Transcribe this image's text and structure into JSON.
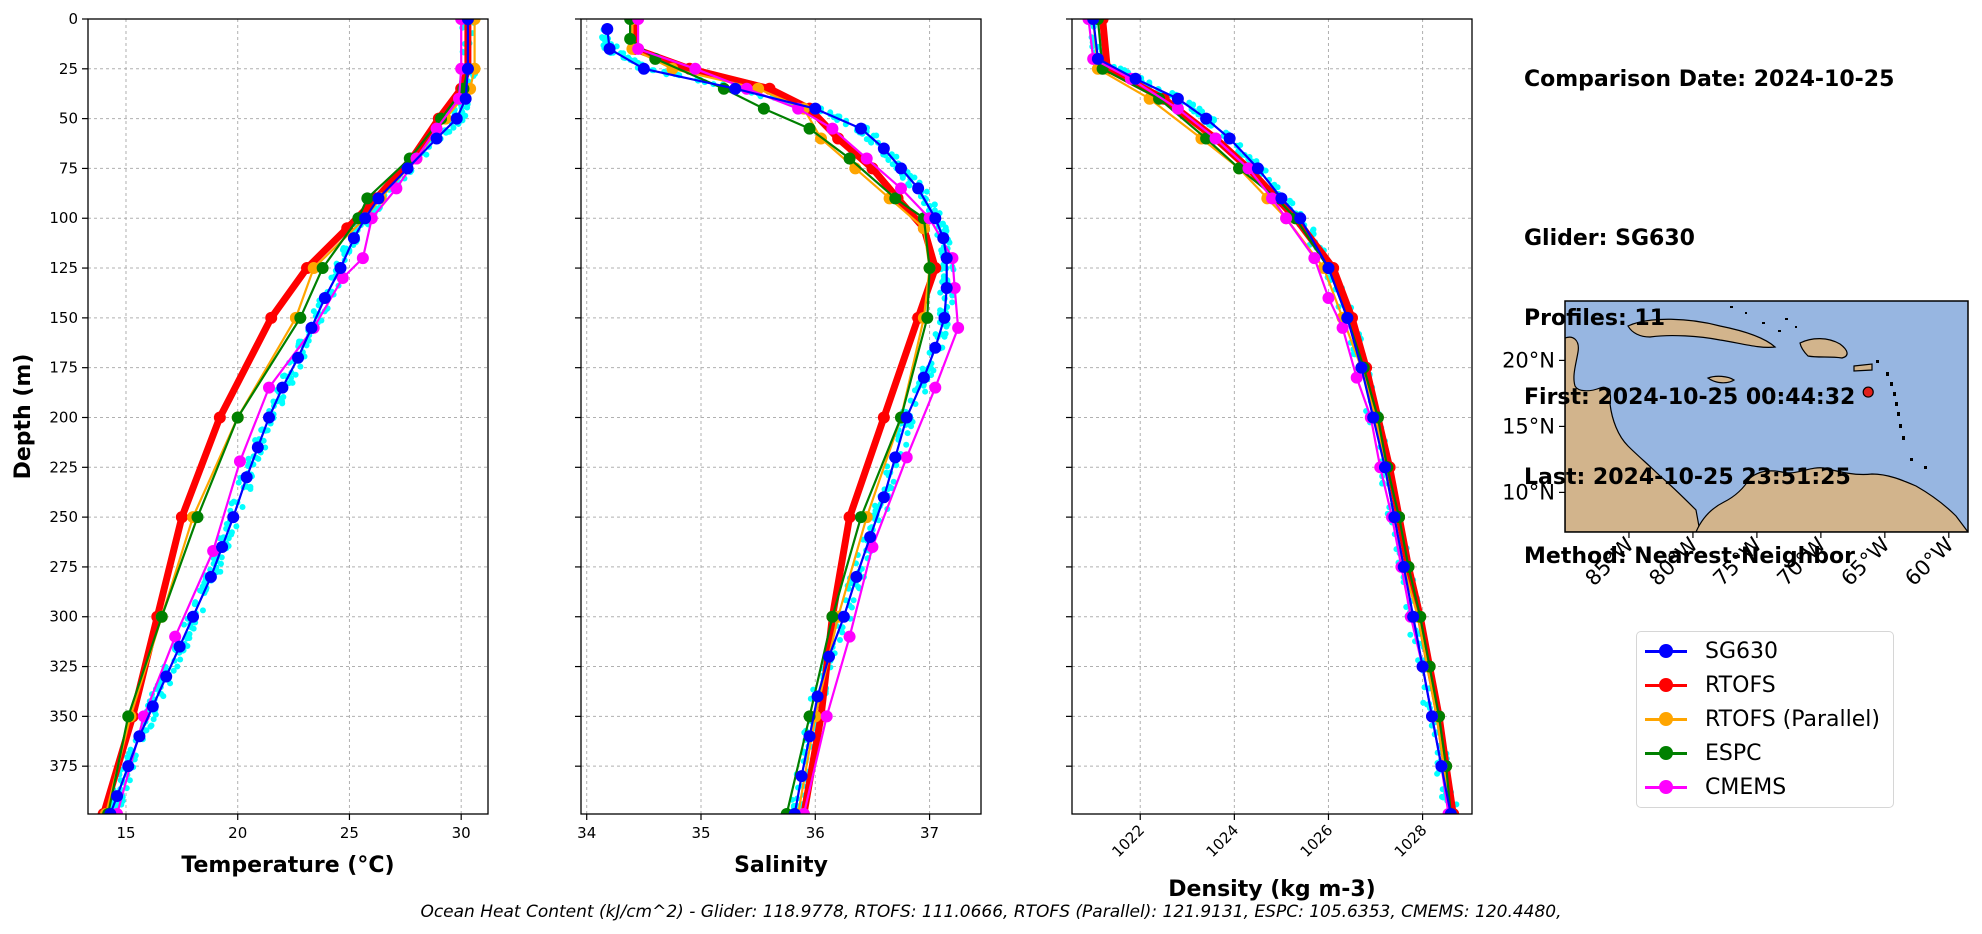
{
  "info": {
    "lines": [
      "Comparison Date: 2024-10-25",
      "",
      "Glider: SG630",
      "Profiles: 11",
      "First: 2024-10-25 00:44:32",
      "Last: 2024-10-25 23:51:25",
      "Method: Nearest-Neighbor"
    ]
  },
  "legend": [
    {
      "name": "SG630",
      "color": "#0000ff"
    },
    {
      "name": "RTOFS",
      "color": "#ff0000"
    },
    {
      "name": "RTOFS (Parallel)",
      "color": "#ffa500"
    },
    {
      "name": "ESPC",
      "color": "#008000"
    },
    {
      "name": "CMEMS",
      "color": "#ff00ff"
    }
  ],
  "ohc_text": "Ocean Heat Content (kJ/cm^2) - Glider: 118.9778,  RTOFS: 111.0666,  RTOFS (Parallel): 121.9131,  ESPC: 105.6353,  CMEMS: 120.4480,",
  "chart_data": [
    {
      "type": "line",
      "xlabel": "Temperature (°C)",
      "ylabel": "Depth (m)",
      "xlim": [
        13.3,
        31.2
      ],
      "ylim": [
        399,
        0
      ],
      "xticks": [
        15,
        20,
        25,
        30
      ],
      "yticks": [
        0,
        25,
        50,
        75,
        100,
        125,
        150,
        175,
        200,
        225,
        250,
        275,
        300,
        325,
        350,
        375
      ],
      "grid": true,
      "series": [
        {
          "name": "SG630",
          "color": "#0000ff",
          "depth": [
            0,
            25,
            40,
            50,
            60,
            75,
            90,
            100,
            110,
            125,
            140,
            155,
            170,
            185,
            200,
            215,
            230,
            250,
            265,
            280,
            300,
            315,
            330,
            345,
            360,
            375,
            390,
            399
          ],
          "values": [
            30.3,
            30.3,
            30.2,
            29.8,
            28.9,
            27.6,
            26.3,
            25.7,
            25.2,
            24.6,
            23.9,
            23.3,
            22.7,
            22.0,
            21.4,
            20.9,
            20.4,
            19.8,
            19.3,
            18.8,
            18.0,
            17.4,
            16.8,
            16.2,
            15.6,
            15.1,
            14.6,
            14.3
          ]
        },
        {
          "name": "RTOFS",
          "color": "#ff0000",
          "depth": [
            0,
            25,
            35,
            50,
            70,
            90,
            105,
            125,
            150,
            200,
            250,
            300,
            350,
            399
          ],
          "values": [
            30.3,
            30.3,
            30.0,
            29.0,
            27.8,
            26.2,
            24.9,
            23.1,
            21.5,
            19.2,
            17.5,
            16.4,
            15.3,
            14.0
          ]
        },
        {
          "name": "RTOFS (Parallel)",
          "color": "#ffa500",
          "depth": [
            0,
            25,
            35,
            50,
            70,
            90,
            100,
            125,
            150,
            200,
            250,
            300,
            350,
            399
          ],
          "values": [
            30.6,
            30.6,
            30.4,
            29.3,
            28.0,
            26.4,
            25.7,
            23.4,
            22.6,
            20.0,
            18.0,
            16.6,
            15.2,
            14.1
          ]
        },
        {
          "name": "ESPC",
          "color": "#008000",
          "depth": [
            0,
            25,
            35,
            50,
            70,
            90,
            100,
            125,
            150,
            200,
            250,
            300,
            350,
            399
          ],
          "values": [
            30.3,
            30.3,
            30.1,
            29.1,
            27.7,
            25.8,
            25.4,
            23.8,
            22.8,
            20.0,
            18.2,
            16.6,
            15.1,
            14.2
          ]
        },
        {
          "name": "CMEMS",
          "color": "#ff00ff",
          "depth": [
            0,
            25,
            40,
            55,
            70,
            85,
            100,
            120,
            130,
            155,
            185,
            222,
            267,
            310,
            350,
            399
          ],
          "values": [
            30.0,
            30.0,
            29.9,
            28.9,
            28.0,
            27.1,
            26.0,
            25.6,
            24.7,
            23.4,
            21.4,
            20.1,
            18.9,
            17.2,
            15.8,
            14.6
          ]
        }
      ]
    },
    {
      "type": "line",
      "xlabel": "Salinity",
      "ylabel": "",
      "xlim": [
        33.95,
        37.45
      ],
      "ylim": [
        399,
        0
      ],
      "xticks": [
        34,
        35,
        36,
        37
      ],
      "yticks": [
        0,
        25,
        50,
        75,
        100,
        125,
        150,
        175,
        200,
        225,
        250,
        275,
        300,
        325,
        350,
        375
      ],
      "grid": true,
      "series": [
        {
          "name": "SG630",
          "color": "#0000ff",
          "depth": [
            5,
            15,
            25,
            35,
            45,
            55,
            65,
            75,
            85,
            100,
            110,
            120,
            135,
            150,
            165,
            180,
            200,
            220,
            240,
            260,
            280,
            300,
            320,
            340,
            360,
            380,
            399
          ],
          "values": [
            34.18,
            34.2,
            34.5,
            35.3,
            36.0,
            36.4,
            36.6,
            36.75,
            36.9,
            37.05,
            37.12,
            37.15,
            37.15,
            37.13,
            37.05,
            36.95,
            36.8,
            36.7,
            36.6,
            36.48,
            36.36,
            36.25,
            36.12,
            36.02,
            35.95,
            35.88,
            35.82
          ]
        },
        {
          "name": "RTOFS",
          "color": "#ff0000",
          "depth": [
            0,
            15,
            25,
            35,
            45,
            60,
            75,
            90,
            105,
            125,
            150,
            200,
            250,
            300,
            350,
            399
          ],
          "values": [
            34.42,
            34.42,
            34.9,
            35.6,
            35.95,
            36.2,
            36.5,
            36.72,
            36.95,
            37.05,
            36.9,
            36.6,
            36.3,
            36.15,
            36.05,
            35.9
          ]
        },
        {
          "name": "RTOFS (Parallel)",
          "color": "#ffa500",
          "depth": [
            0,
            15,
            25,
            35,
            45,
            60,
            75,
            90,
            105,
            125,
            150,
            200,
            250,
            300,
            350,
            399
          ],
          "values": [
            34.4,
            34.4,
            34.75,
            35.5,
            35.9,
            36.05,
            36.35,
            36.65,
            36.95,
            37.0,
            36.95,
            36.75,
            36.45,
            36.2,
            36.0,
            35.85
          ]
        },
        {
          "name": "ESPC",
          "color": "#008000",
          "depth": [
            0,
            10,
            20,
            35,
            45,
            55,
            70,
            90,
            100,
            125,
            150,
            200,
            250,
            300,
            350,
            399
          ],
          "values": [
            34.38,
            34.38,
            34.6,
            35.2,
            35.55,
            35.95,
            36.3,
            36.7,
            36.95,
            37.0,
            36.98,
            36.75,
            36.4,
            36.15,
            35.95,
            35.75
          ]
        },
        {
          "name": "CMEMS",
          "color": "#ff00ff",
          "depth": [
            0,
            15,
            25,
            35,
            45,
            55,
            70,
            85,
            100,
            120,
            135,
            155,
            185,
            220,
            265,
            310,
            350,
            399
          ],
          "values": [
            34.45,
            34.45,
            34.95,
            35.4,
            35.85,
            36.15,
            36.45,
            36.75,
            37.0,
            37.2,
            37.22,
            37.25,
            37.05,
            36.8,
            36.5,
            36.3,
            36.1,
            35.9
          ]
        }
      ]
    },
    {
      "type": "line",
      "xlabel": "Density (kg m-3)",
      "ylabel": "",
      "xlim": [
        1020.55,
        1029.05
      ],
      "ylim": [
        399,
        0
      ],
      "xticks": [
        1022,
        1024,
        1026,
        1028
      ],
      "yticks": [
        0,
        25,
        50,
        75,
        100,
        125,
        150,
        175,
        200,
        225,
        250,
        275,
        300,
        325,
        350,
        375
      ],
      "grid": true,
      "series": [
        {
          "name": "SG630",
          "color": "#0000ff",
          "depth": [
            0,
            20,
            30,
            40,
            50,
            60,
            75,
            90,
            100,
            125,
            150,
            175,
            200,
            225,
            250,
            275,
            300,
            325,
            350,
            375,
            399
          ],
          "values": [
            1021.0,
            1021.1,
            1021.9,
            1022.8,
            1023.4,
            1023.9,
            1024.5,
            1025.0,
            1025.4,
            1026.0,
            1026.4,
            1026.7,
            1026.95,
            1027.2,
            1027.4,
            1027.6,
            1027.8,
            1028.0,
            1028.2,
            1028.4,
            1028.6
          ]
        },
        {
          "name": "RTOFS",
          "color": "#ff0000",
          "depth": [
            0,
            25,
            40,
            60,
            75,
            90,
            100,
            125,
            150,
            175,
            200,
            225,
            250,
            275,
            300,
            325,
            350,
            375,
            399
          ],
          "values": [
            1021.2,
            1021.3,
            1022.5,
            1023.6,
            1024.3,
            1024.9,
            1025.3,
            1026.1,
            1026.5,
            1026.8,
            1027.05,
            1027.3,
            1027.5,
            1027.7,
            1027.95,
            1028.15,
            1028.35,
            1028.5,
            1028.65
          ]
        },
        {
          "name": "RTOFS (Parallel)",
          "color": "#ffa500",
          "depth": [
            0,
            25,
            40,
            60,
            75,
            90,
            100,
            125,
            150,
            175,
            200,
            225,
            250,
            275,
            300,
            325,
            350,
            375,
            399
          ],
          "values": [
            1021.0,
            1021.1,
            1022.2,
            1023.3,
            1024.1,
            1024.7,
            1025.1,
            1025.9,
            1026.3,
            1026.7,
            1027.0,
            1027.2,
            1027.4,
            1027.6,
            1027.9,
            1028.1,
            1028.3,
            1028.45,
            1028.6
          ]
        },
        {
          "name": "ESPC",
          "color": "#008000",
          "depth": [
            0,
            25,
            40,
            60,
            75,
            90,
            100,
            125,
            150,
            175,
            200,
            225,
            250,
            275,
            300,
            325,
            350,
            375,
            399
          ],
          "values": [
            1021.1,
            1021.2,
            1022.4,
            1023.4,
            1024.1,
            1024.9,
            1025.3,
            1026.0,
            1026.4,
            1026.75,
            1027.05,
            1027.25,
            1027.5,
            1027.7,
            1027.95,
            1028.15,
            1028.35,
            1028.5,
            1028.6
          ]
        },
        {
          "name": "CMEMS",
          "color": "#ff00ff",
          "depth": [
            0,
            20,
            30,
            45,
            60,
            75,
            90,
            100,
            120,
            140,
            155,
            180,
            200,
            225,
            250,
            275,
            300,
            325,
            350,
            375,
            399
          ],
          "values": [
            1020.9,
            1021.0,
            1021.8,
            1022.8,
            1023.6,
            1024.3,
            1024.8,
            1025.1,
            1025.7,
            1026.0,
            1026.3,
            1026.6,
            1026.9,
            1027.1,
            1027.35,
            1027.55,
            1027.75,
            1028.0,
            1028.2,
            1028.4,
            1028.55
          ]
        }
      ]
    },
    {
      "type": "map",
      "lon_ticks": [
        "85°W",
        "80°W",
        "75°W",
        "70°W",
        "65°W",
        "60°W"
      ],
      "lat_ticks": [
        "20°N",
        "15°N",
        "10°N"
      ],
      "lon_range": [
        -90,
        -58.5
      ],
      "lat_range": [
        7,
        24.5
      ],
      "marker": {
        "lon": -66.3,
        "lat": 17.6
      }
    }
  ]
}
